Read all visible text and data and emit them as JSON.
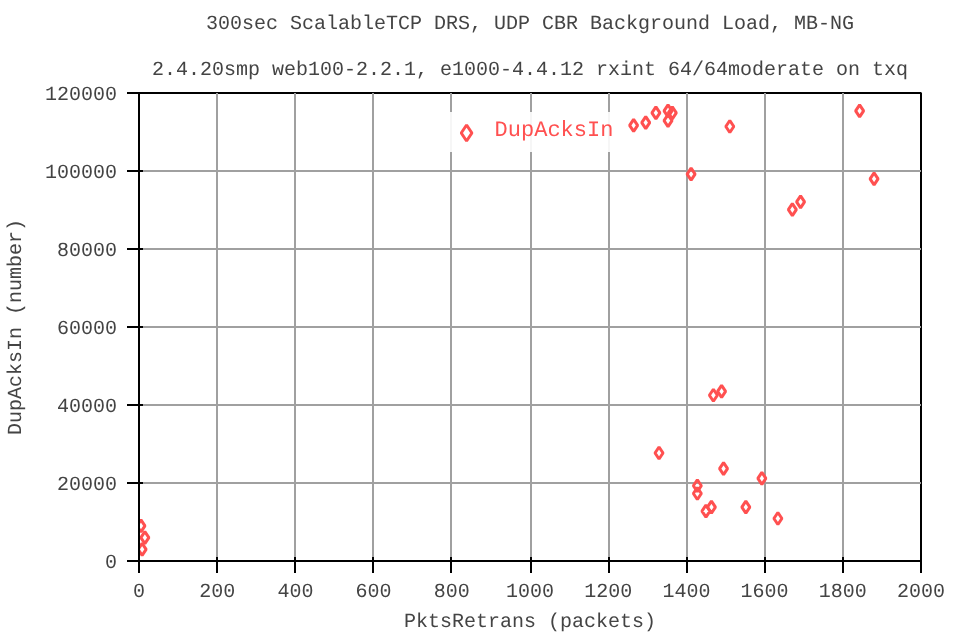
{
  "chart_data": {
    "type": "scatter",
    "title": "300sec ScalableTCP DRS, UDP CBR Background Load, MB-NG",
    "subtitle": "2.4.20smp web100-2.2.1, e1000-4.4.12 rxint 64/64moderate on txq",
    "xlabel": "PktsRetrans (packets)",
    "ylabel": "DupAcksIn (number)",
    "xlim": [
      0,
      2000
    ],
    "ylim": [
      0,
      120000
    ],
    "xticks": [
      0,
      200,
      400,
      600,
      800,
      1000,
      1200,
      1400,
      1600,
      1800,
      2000
    ],
    "yticks": [
      0,
      20000,
      40000,
      60000,
      80000,
      100000,
      120000
    ],
    "grid": true,
    "legend": "top",
    "marker": "diamond",
    "series": [
      {
        "name": "DupAcksIn",
        "color": "#ff5050",
        "x": [
          1265,
          1296,
          1322,
          1353,
          1364,
          1353,
          1412,
          1511,
          1843,
          1880,
          1692,
          1671,
          1330,
          1428,
          1428,
          1469,
          1490,
          1450,
          1464,
          1495,
          1552,
          1593,
          1634,
          5,
          15,
          8
        ],
        "values": [
          111700,
          112400,
          114900,
          115400,
          114900,
          112900,
          99200,
          111400,
          115400,
          98000,
          92100,
          90100,
          27700,
          19300,
          17300,
          42500,
          43500,
          12800,
          13800,
          23700,
          13800,
          21200,
          10900,
          9000,
          6000,
          3000
        ]
      }
    ]
  }
}
